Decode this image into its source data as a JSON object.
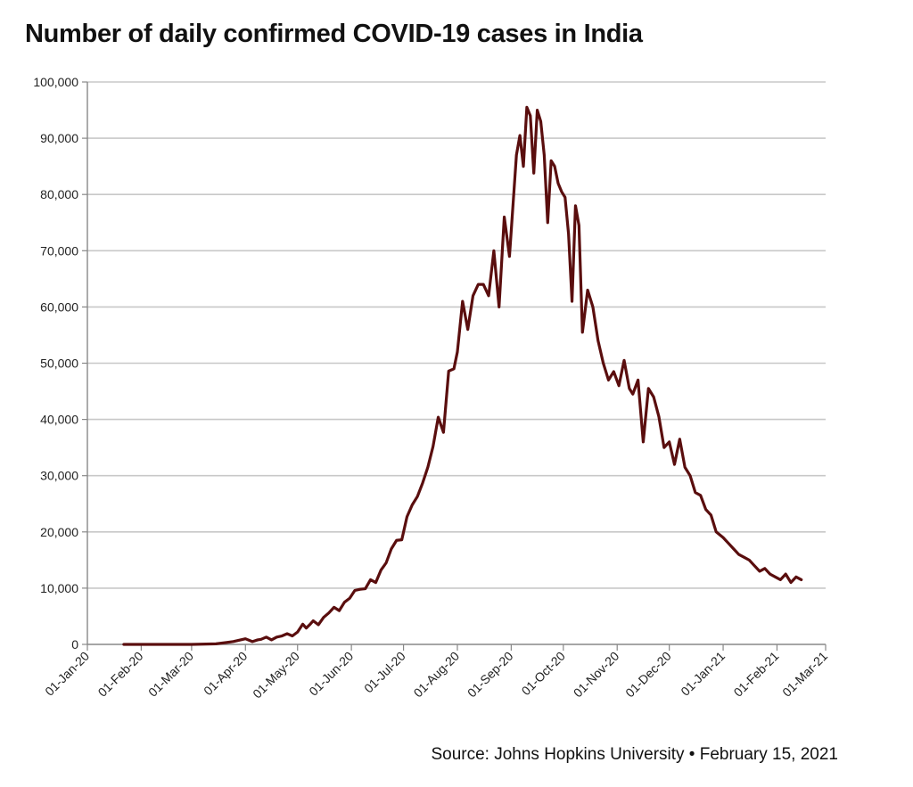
{
  "title": "Number of daily confirmed COVID-19 cases in India",
  "source": "Source: Johns Hopkins University • February 15, 2021",
  "colors": {
    "line": "#5a0e0e",
    "grid": "#c8c8c8",
    "axis": "#888888"
  },
  "chart_data": {
    "type": "line",
    "title": "Number of daily confirmed COVID-19 cases in India",
    "xlabel": "",
    "ylabel": "",
    "ylim": [
      0,
      100000
    ],
    "xlim": [
      "2020-01-01",
      "2021-03-01"
    ],
    "grid": "horizontal",
    "yticks": [
      0,
      10000,
      20000,
      30000,
      40000,
      50000,
      60000,
      70000,
      80000,
      90000,
      100000
    ],
    "ytick_labels": [
      "0",
      "10,000",
      "20,000",
      "30,000",
      "40,000",
      "50,000",
      "60,000",
      "70,000",
      "80,000",
      "90,000",
      "100,000"
    ],
    "xticks": [
      "2020-01-01",
      "2020-02-01",
      "2020-03-01",
      "2020-04-01",
      "2020-05-01",
      "2020-06-01",
      "2020-07-01",
      "2020-08-01",
      "2020-09-01",
      "2020-10-01",
      "2020-11-01",
      "2020-12-01",
      "2021-01-01",
      "2021-02-01",
      "2021-03-01"
    ],
    "xtick_labels": [
      "01-Jan-20",
      "01-Feb-20",
      "01-Mar-20",
      "01-Apr-20",
      "01-May-20",
      "01-Jun-20",
      "01-Jul-20",
      "01-Aug-20",
      "01-Sep-20",
      "01-Oct-20",
      "01-Nov-20",
      "01-Dec-20",
      "01-Jan-21",
      "01-Feb-21",
      "01-Mar-21"
    ],
    "series": [
      {
        "x": [
          "2020-01-22",
          "2020-02-15",
          "2020-03-01",
          "2020-03-15",
          "2020-03-25",
          "2020-04-01",
          "2020-04-05",
          "2020-04-08",
          "2020-04-10",
          "2020-04-13",
          "2020-04-16",
          "2020-04-19",
          "2020-04-22",
          "2020-04-25",
          "2020-04-28",
          "2020-05-01",
          "2020-05-04",
          "2020-05-06",
          "2020-05-08",
          "2020-05-10",
          "2020-05-13",
          "2020-05-16",
          "2020-05-19",
          "2020-05-22",
          "2020-05-25",
          "2020-05-28",
          "2020-05-31",
          "2020-06-03",
          "2020-06-06",
          "2020-06-09",
          "2020-06-12",
          "2020-06-15",
          "2020-06-18",
          "2020-06-21",
          "2020-06-24",
          "2020-06-27",
          "2020-06-30",
          "2020-07-03",
          "2020-07-06",
          "2020-07-09",
          "2020-07-12",
          "2020-07-15",
          "2020-07-18",
          "2020-07-21",
          "2020-07-24",
          "2020-07-27",
          "2020-07-30",
          "2020-08-01",
          "2020-08-04",
          "2020-08-07",
          "2020-08-10",
          "2020-08-13",
          "2020-08-16",
          "2020-08-19",
          "2020-08-22",
          "2020-08-25",
          "2020-08-28",
          "2020-08-31",
          "2020-09-02",
          "2020-09-04",
          "2020-09-06",
          "2020-09-08",
          "2020-09-10",
          "2020-09-12",
          "2020-09-14",
          "2020-09-16",
          "2020-09-18",
          "2020-09-20",
          "2020-09-22",
          "2020-09-24",
          "2020-09-26",
          "2020-09-28",
          "2020-09-30",
          "2020-10-02",
          "2020-10-04",
          "2020-10-06",
          "2020-10-08",
          "2020-10-10",
          "2020-10-12",
          "2020-10-15",
          "2020-10-18",
          "2020-10-21",
          "2020-10-24",
          "2020-10-27",
          "2020-10-30",
          "2020-11-02",
          "2020-11-05",
          "2020-11-08",
          "2020-11-10",
          "2020-11-13",
          "2020-11-16",
          "2020-11-19",
          "2020-11-22",
          "2020-11-25",
          "2020-11-28",
          "2020-12-01",
          "2020-12-04",
          "2020-12-07",
          "2020-12-10",
          "2020-12-13",
          "2020-12-16",
          "2020-12-19",
          "2020-12-22",
          "2020-12-25",
          "2020-12-28",
          "2021-01-01",
          "2021-01-04",
          "2021-01-07",
          "2021-01-10",
          "2021-01-13",
          "2021-01-16",
          "2021-01-19",
          "2021-01-22",
          "2021-01-25",
          "2021-01-28",
          "2021-01-31",
          "2021-02-03",
          "2021-02-06",
          "2021-02-09",
          "2021-02-12",
          "2021-02-15"
        ],
        "y": [
          0,
          0,
          0,
          100,
          500,
          1000,
          500,
          800,
          900,
          1300,
          800,
          1300,
          1500,
          1900,
          1500,
          2200,
          3600,
          2900,
          3500,
          4200,
          3500,
          4800,
          5600,
          6600,
          6000,
          7500,
          8200,
          9600,
          9800,
          9900,
          11500,
          11000,
          13200,
          14500,
          17000,
          18500,
          18600,
          22700,
          24800,
          26300,
          28700,
          31500,
          35200,
          40400,
          37700,
          48600,
          49000,
          52000,
          61000,
          56000,
          62000,
          64000,
          64000,
          62000,
          70000,
          60000,
          76000,
          69000,
          78000,
          87000,
          90500,
          85000,
          95500,
          94000,
          83800,
          95000,
          93000,
          87000,
          75000,
          86000,
          85000,
          82000,
          80500,
          79500,
          73000,
          61000,
          78000,
          74500,
          55500,
          63000,
          60000,
          54000,
          50000,
          47000,
          48500,
          46000,
          50500,
          45500,
          44500,
          47000,
          36000,
          45500,
          44000,
          40500,
          35000,
          36000,
          32000,
          36500,
          31500,
          30000,
          27000,
          26500,
          24000,
          23000,
          20000,
          19000,
          18000,
          17000,
          16000,
          15500,
          15000,
          14000,
          13000,
          13500,
          12500,
          12000,
          11500,
          12500,
          11000,
          12000,
          11500
        ]
      }
    ]
  }
}
